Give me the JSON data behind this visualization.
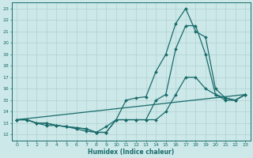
{
  "xlabel": "Humidex (Indice chaleur)",
  "bg_color": "#cce8e8",
  "grid_color": "#aacccc",
  "line_color": "#1a6b6b",
  "xlim": [
    -0.5,
    23.5
  ],
  "ylim": [
    11.5,
    23.5
  ],
  "xticks": [
    0,
    1,
    2,
    3,
    4,
    5,
    6,
    7,
    8,
    9,
    10,
    11,
    12,
    13,
    14,
    15,
    16,
    17,
    18,
    19,
    20,
    21,
    22,
    23
  ],
  "yticks": [
    12,
    13,
    14,
    15,
    16,
    17,
    18,
    19,
    20,
    21,
    22,
    23
  ],
  "lines": [
    {
      "x": [
        0,
        1,
        2,
        3,
        4,
        5,
        6,
        7,
        8,
        9,
        10,
        11,
        12,
        13,
        14,
        15,
        16,
        17,
        18,
        19,
        20,
        21,
        22,
        23
      ],
      "y": [
        13.3,
        13.3,
        13.0,
        13.0,
        12.8,
        12.7,
        12.6,
        12.5,
        12.2,
        12.7,
        13.3,
        15.0,
        15.2,
        15.3,
        17.5,
        19.0,
        21.7,
        23.0,
        21.0,
        20.5,
        16.0,
        15.2,
        15.0,
        15.5
      ],
      "marker": "D",
      "markersize": 2.0,
      "linewidth": 0.9
    },
    {
      "x": [
        0,
        1,
        2,
        3,
        4,
        5,
        6,
        7,
        8,
        9,
        10,
        11,
        12,
        13,
        14,
        15,
        16,
        17,
        18,
        19,
        20,
        21,
        22,
        23
      ],
      "y": [
        13.3,
        13.3,
        13.0,
        13.0,
        12.8,
        12.7,
        12.6,
        12.5,
        12.2,
        12.2,
        13.3,
        13.3,
        13.3,
        13.3,
        15.0,
        15.5,
        19.5,
        21.5,
        21.5,
        19.0,
        15.5,
        15.0,
        15.0,
        15.5
      ],
      "marker": "D",
      "markersize": 2.0,
      "linewidth": 0.9
    },
    {
      "x": [
        0,
        1,
        2,
        3,
        4,
        5,
        6,
        7,
        8,
        9,
        10,
        11,
        12,
        13,
        14,
        15,
        16,
        17,
        18,
        19,
        20,
        21,
        22,
        23
      ],
      "y": [
        13.3,
        13.3,
        13.0,
        12.8,
        12.8,
        12.7,
        12.5,
        12.3,
        12.2,
        12.2,
        13.3,
        13.3,
        13.3,
        13.3,
        13.3,
        14.0,
        15.5,
        17.0,
        17.0,
        16.0,
        15.5,
        15.2,
        15.0,
        15.5
      ],
      "marker": "D",
      "markersize": 2.0,
      "linewidth": 0.9
    },
    {
      "x": [
        0,
        23
      ],
      "y": [
        13.3,
        15.5
      ],
      "marker": null,
      "markersize": 0,
      "linewidth": 0.9
    }
  ]
}
